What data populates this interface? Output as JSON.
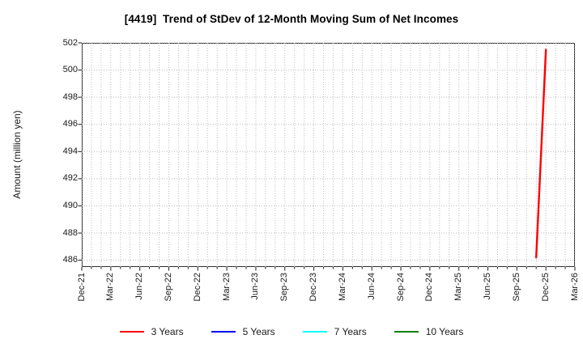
{
  "chart_data": {
    "type": "line",
    "title": "[4419]  Trend of StDev of 12-Month Moving Sum of Net Incomes",
    "ylabel": "Amount (million yen)",
    "x_tick_labels": [
      "Dec-21",
      "Mar-22",
      "Jun-22",
      "Sep-22",
      "Dec-22",
      "Mar-23",
      "Jun-23",
      "Sep-23",
      "Dec-23",
      "Mar-24",
      "Jun-24",
      "Sep-24",
      "Dec-24",
      "Mar-25",
      "Jun-25",
      "Sep-25",
      "Dec-25",
      "Mar-26"
    ],
    "y_tick_labels": [
      486,
      488,
      490,
      492,
      494,
      496,
      498,
      500,
      502
    ],
    "ylim": [
      485.5,
      502
    ],
    "grid": {
      "visible": true,
      "line_style": "dotted",
      "vertical_interval": "monthly",
      "horizontal_interval": 2
    },
    "legend_position": "bottom-center",
    "series": [
      {
        "name": "3 Years",
        "color": "#ff0000",
        "points": [
          {
            "x": "Nov-25",
            "y": 486.2
          },
          {
            "x": "Dec-25",
            "y": 501.5
          }
        ]
      },
      {
        "name": "5 Years",
        "color": "#0000ff",
        "points": []
      },
      {
        "name": "7 Years",
        "color": "#00ffff",
        "points": []
      },
      {
        "name": "10 Years",
        "color": "#008000",
        "points": []
      }
    ]
  },
  "colors": {
    "axis": "#2e2e2e",
    "grid": "#bcbcbc",
    "text": "#1a1a1a",
    "background": "#ffffff"
  }
}
